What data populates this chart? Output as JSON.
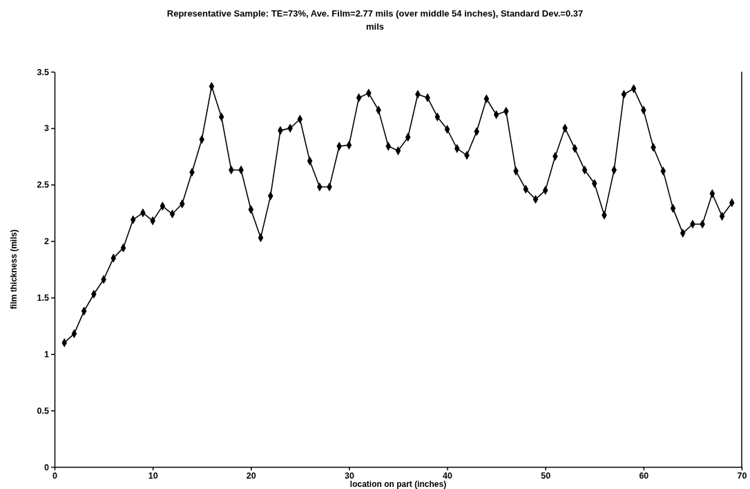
{
  "chart_data": {
    "type": "line",
    "title": "Representative Sample: TE=73%, Ave. Film=2.77 mils (over middle 54 inches), Standard Dev.=0.37 mils",
    "xlabel": "location on part (inches)",
    "ylabel": "film thickness (mils)",
    "x": [
      1,
      2,
      3,
      4,
      5,
      6,
      7,
      8,
      9,
      10,
      11,
      12,
      13,
      14,
      15,
      16,
      17,
      18,
      19,
      20,
      21,
      22,
      23,
      24,
      25,
      26,
      27,
      28,
      29,
      30,
      31,
      32,
      33,
      34,
      35,
      36,
      37,
      38,
      39,
      40,
      41,
      42,
      43,
      44,
      45,
      46,
      47,
      48,
      49,
      50,
      51,
      52,
      53,
      54,
      55,
      56,
      57,
      58,
      59,
      60,
      61,
      62,
      63,
      64,
      65,
      66,
      67,
      68,
      69
    ],
    "series": [
      {
        "color": "#000000",
        "values": [
          1.1,
          1.18,
          1.38,
          1.53,
          1.66,
          1.85,
          1.94,
          2.19,
          2.25,
          2.18,
          2.31,
          2.24,
          2.33,
          2.61,
          2.9,
          3.37,
          3.1,
          2.63,
          2.63,
          2.28,
          2.03,
          2.4,
          2.98,
          3.0,
          3.08,
          2.71,
          2.48,
          2.48,
          2.84,
          2.85,
          3.27,
          3.31,
          3.16,
          2.84,
          2.8,
          2.92,
          3.3,
          3.27,
          3.1,
          2.99,
          2.82,
          2.76,
          2.97,
          3.26,
          3.12,
          3.15,
          2.62,
          2.46,
          2.37,
          2.45,
          2.75,
          3.0,
          2.82,
          2.63,
          2.51,
          2.23,
          2.63,
          3.3,
          3.35,
          3.16,
          2.83,
          2.62,
          2.29,
          2.07,
          2.15,
          2.15,
          2.42,
          2.22,
          2.34
        ]
      }
    ],
    "xlim": [
      0,
      70
    ],
    "xticks": [
      0,
      10,
      20,
      30,
      40,
      50,
      60,
      70
    ],
    "ylim": [
      0,
      3.5
    ],
    "yticks": [
      0,
      0.5,
      1,
      1.5,
      2,
      2.5,
      3,
      3.5
    ],
    "grid": false,
    "marker": "diamond",
    "line_style": "solid"
  }
}
